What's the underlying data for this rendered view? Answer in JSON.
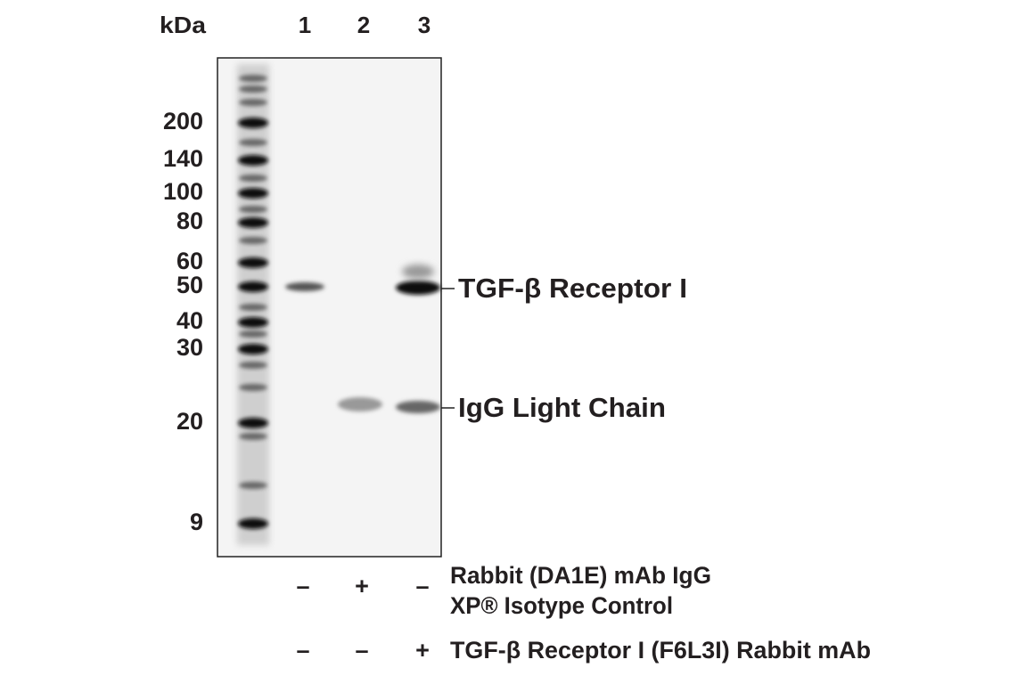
{
  "header": {
    "unit_label": "kDa",
    "lanes": [
      "1",
      "2",
      "3"
    ]
  },
  "markers": [
    "200",
    "140",
    "100",
    "80",
    "60",
    "50",
    "40",
    "30",
    "20",
    "9"
  ],
  "bands": [
    "TGF-β Receptor I",
    "IgG Light Chain"
  ],
  "treatments": [
    {
      "lines": [
        "Rabbit (DA1E) mAb IgG",
        "XP® Isotype Control"
      ],
      "signs": [
        "–",
        "+",
        "–"
      ]
    },
    {
      "lines": [
        "TGF-β Receptor I (F6L3I) Rabbit mAb"
      ],
      "signs": [
        "–",
        "–",
        "+"
      ]
    }
  ]
}
